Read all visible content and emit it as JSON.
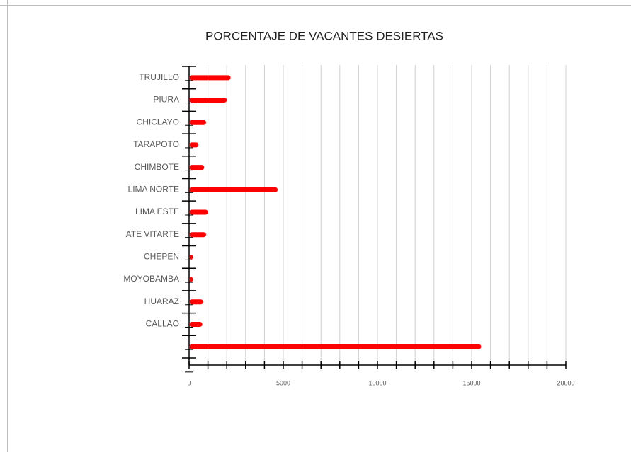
{
  "chart_data": {
    "type": "bar",
    "orientation": "horizontal",
    "title": "PORCENTAJE DE VACANTES DESIERTAS",
    "categories": [
      "TRUJILLO",
      "PIURA",
      "CHICLAYO",
      "TARAPOTO",
      "CHIMBOTE",
      "LIMA NORTE",
      "LIMA ESTE",
      "ATE VITARTE",
      "CHEPEN",
      "MOYOBAMBA",
      "HUARAZ",
      "CALLAO",
      null
    ],
    "values": [
      2200,
      2000,
      900,
      500,
      800,
      4700,
      1000,
      900,
      200,
      200,
      750,
      700,
      15500
    ],
    "color": "#ff0000",
    "xlim": [
      0,
      20000
    ],
    "xticks": [
      0,
      5000,
      10000,
      15000,
      20000
    ],
    "x_minor_ticks": [
      1000,
      2000,
      3000,
      4000,
      6000,
      7000,
      8000,
      9000,
      11000,
      12000,
      13000,
      14000,
      16000,
      17000,
      18000,
      19000
    ],
    "grid": true
  }
}
